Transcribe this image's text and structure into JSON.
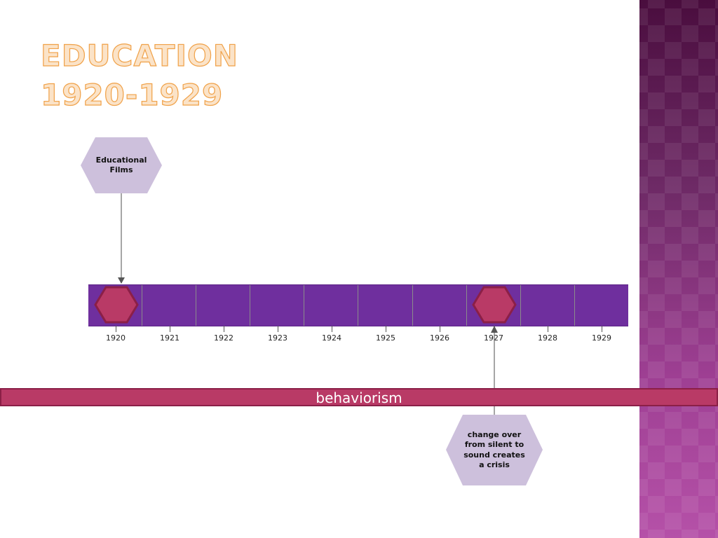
{
  "title": {
    "line1": "EDUCATION",
    "line2": "1920-1929"
  },
  "timeline": {
    "years": [
      "1920",
      "1921",
      "1922",
      "1923",
      "1924",
      "1925",
      "1926",
      "1927",
      "1928",
      "1929"
    ],
    "bar_color": "#6f2f9e",
    "marker_color": "#b93a66",
    "marker_border": "#8b1f47"
  },
  "events": [
    {
      "label": "Educational Films",
      "year": "1920",
      "position": "above"
    },
    {
      "label": "change over from silent to sound creates a crisis",
      "year": "1927",
      "position": "below"
    }
  ],
  "band": {
    "label": "behaviorism",
    "color": "#b93a66"
  },
  "callout_color": "#cdc0dc"
}
